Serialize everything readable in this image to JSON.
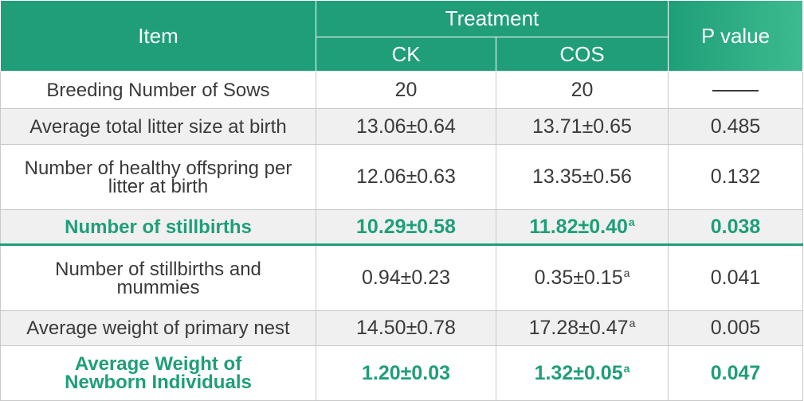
{
  "header": {
    "item": "Item",
    "treatment": "Treatment",
    "ck": "CK",
    "cos": "COS",
    "p_value": "P value"
  },
  "rows": [
    {
      "item": "Breeding Number of Sows",
      "ck": "20",
      "cos": "20",
      "cos_sup": "",
      "p": ""
    },
    {
      "item": "Average total litter size at birth",
      "ck": "13.06±0.64",
      "cos": "13.71±0.65",
      "cos_sup": "",
      "p": "0.485"
    },
    {
      "item": "Number of healthy offspring per litter at birth",
      "ck": "12.06±0.63",
      "cos": "13.35±0.56",
      "cos_sup": "",
      "p": "0.132"
    },
    {
      "item": "Number of stillbirths",
      "ck": "10.29±0.58",
      "cos": "11.82±0.40",
      "cos_sup": "a",
      "p": "0.038"
    },
    {
      "item": "Number of stillbirths and mummies",
      "ck": "0.94±0.23",
      "cos": "0.35±0.15",
      "cos_sup": "a",
      "p": "0.041"
    },
    {
      "item": "Average weight of primary nest",
      "ck": "14.50±0.78",
      "cos": "17.28±0.47",
      "cos_sup": "a",
      "p": "0.005"
    },
    {
      "item": "Average Weight of Newborn Individuals",
      "ck": "1.20±0.03",
      "cos": "1.32±0.05",
      "cos_sup": "a",
      "p": "0.047"
    }
  ],
  "colors": {
    "header_green": "#1f9e79",
    "highlight_green": "#1f9e79",
    "text": "#3a3a3a"
  }
}
